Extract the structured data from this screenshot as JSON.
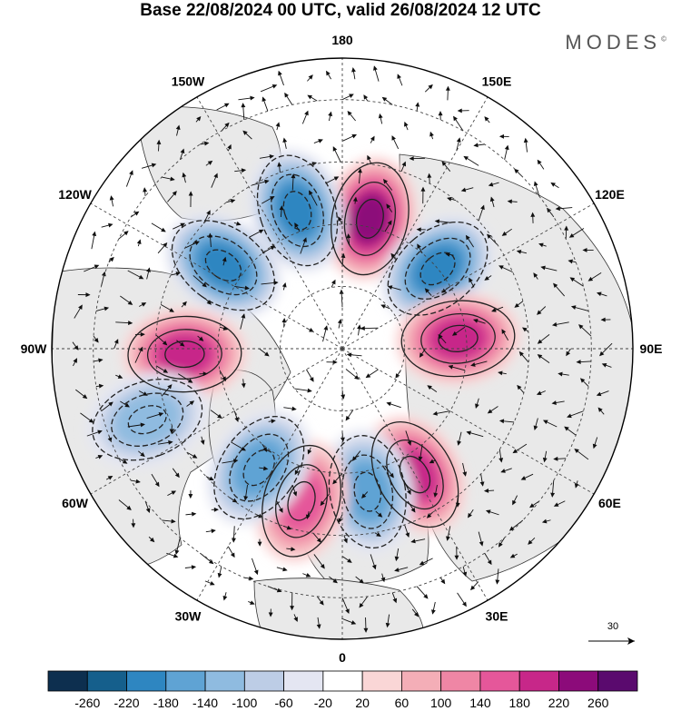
{
  "title": "Base 22/08/2024 00 UTC, valid 26/08/2024 12 UTC",
  "brand": "MODES",
  "brand_mark": "©",
  "longitude_labels": [
    {
      "text": "180",
      "lon": 180
    },
    {
      "text": "150E",
      "lon": 150
    },
    {
      "text": "120E",
      "lon": 120
    },
    {
      "text": "90E",
      "lon": 90
    },
    {
      "text": "60E",
      "lon": 60
    },
    {
      "text": "30E",
      "lon": 30
    },
    {
      "text": "0",
      "lon": 0
    },
    {
      "text": "30W",
      "lon": -30
    },
    {
      "text": "60W",
      "lon": -60
    },
    {
      "text": "90W",
      "lon": -90
    },
    {
      "text": "120W",
      "lon": -120
    },
    {
      "text": "150W",
      "lon": -150
    }
  ],
  "reference_vector": {
    "label": "30"
  },
  "colorbar": {
    "ticks": [
      "-260",
      "-220",
      "-180",
      "-140",
      "-100",
      "-60",
      "-20",
      "20",
      "60",
      "100",
      "140",
      "180",
      "220",
      "260"
    ],
    "colors": [
      "#0d2f4f",
      "#155f8c",
      "#2e86c1",
      "#5fa3d4",
      "#8fbbe0",
      "#bdcde6",
      "#e4e6f2",
      "#ffffff",
      "#fad6d6",
      "#f4aeb7",
      "#ef86a5",
      "#e5579a",
      "#c72789",
      "#8c0b7a",
      "#5a0a6e"
    ]
  },
  "anomaly_centers": [
    {
      "lon": 168,
      "lat": 58,
      "value": 240
    },
    {
      "lon": -162,
      "lat": 55,
      "value": -200
    },
    {
      "lon": -125,
      "lat": 55,
      "value": -180
    },
    {
      "lon": 130,
      "lat": 60,
      "value": -200
    },
    {
      "lon": 95,
      "lat": 62,
      "value": 180
    },
    {
      "lon": -88,
      "lat": 52,
      "value": 180
    },
    {
      "lon": -70,
      "lat": 40,
      "value": -120
    },
    {
      "lon": 30,
      "lat": 55,
      "value": 180
    },
    {
      "lon": 10,
      "lat": 55,
      "value": -140
    },
    {
      "lon": -15,
      "lat": 52,
      "value": 140
    },
    {
      "lon": -35,
      "lat": 55,
      "value": -160
    }
  ]
}
